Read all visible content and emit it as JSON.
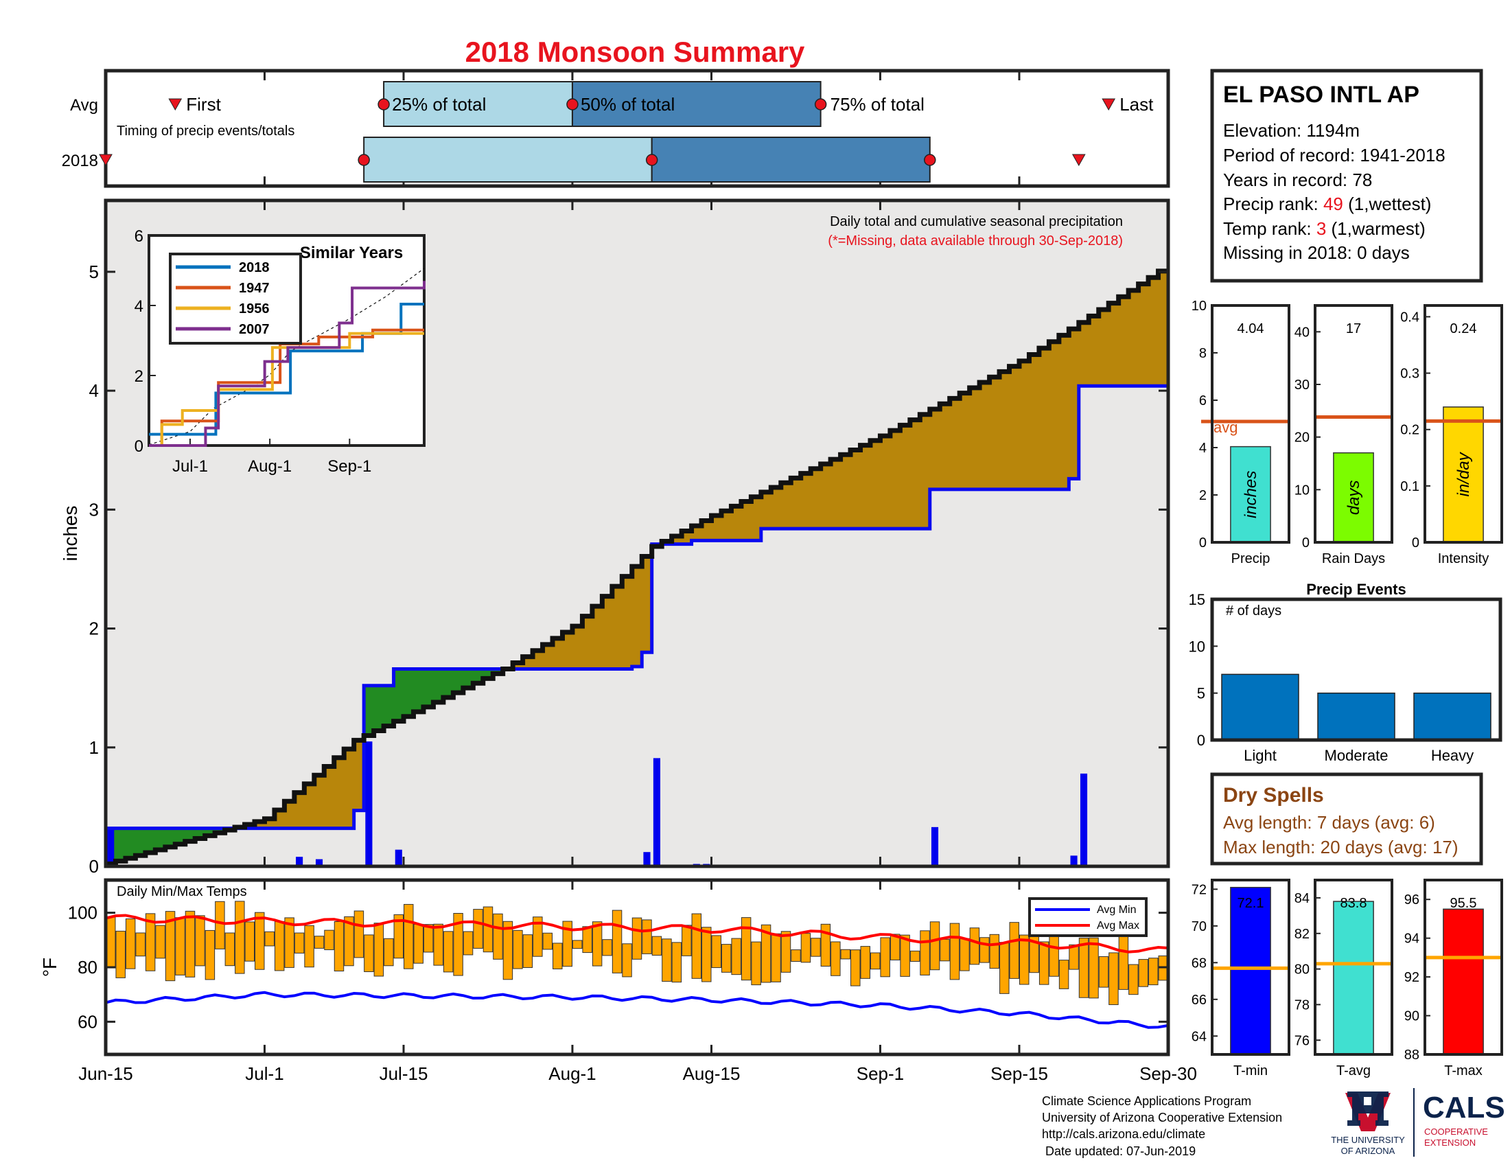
{
  "title": "2018 Monsoon Summary",
  "timing": {
    "row_labels": [
      "Avg",
      "2018"
    ],
    "note": "Timing of precip events/totals",
    "labels": {
      "first": "First",
      "p25": "25% of total",
      "p50": "50% of total",
      "p75": "75% of total",
      "last": "Last"
    },
    "avg": {
      "first": "Jun-22",
      "p25": "Jul-13",
      "p50": "Aug-1",
      "p75": "Aug-26",
      "last": "Sep-24"
    },
    "y2018": {
      "first": "Jun-15",
      "p25": "Jul-11",
      "p50": "Aug-9",
      "p75": "Sep-6",
      "last": "Sep-21"
    }
  },
  "station": {
    "name": "EL PASO INTL AP",
    "elevation": "Elevation: 1194m",
    "period": "Period of record: 1941-2018",
    "years": "Years in record: 78",
    "precip_rank_prefix": "Precip rank: ",
    "precip_rank_value": "49",
    "precip_rank_suffix": " (1,wettest)",
    "temp_rank_prefix": "Temp rank: ",
    "temp_rank_value": "3",
    "temp_rank_suffix": " (1,warmest)",
    "missing": "Missing in 2018: 0 days"
  },
  "main_chart": {
    "ylabel": "inches",
    "note_line1": "Daily total and cumulative seasonal precipitation",
    "note_line2": "(*=Missing, data available through 30-Sep-2018)",
    "x_ticks": [
      "Jun-15",
      "Jul-1",
      "Jul-15",
      "Aug-1",
      "Aug-15",
      "Sep-1",
      "Sep-15",
      "Sep-30"
    ],
    "y_ticks": [
      "0",
      "1",
      "2",
      "3",
      "4",
      "5"
    ]
  },
  "inset": {
    "title": "Similar Years",
    "legend": [
      "2018",
      "1947",
      "1956",
      "2007"
    ],
    "colors": [
      "#0072bd",
      "#d95319",
      "#edb120",
      "#7e2f8e"
    ],
    "x_ticks": [
      "Jul-1",
      "Aug-1",
      "Sep-1"
    ],
    "y_ticks": [
      "0",
      "2",
      "4",
      "6"
    ]
  },
  "stats": {
    "precip": {
      "label": "Precip",
      "value_text": "4.04",
      "unit": "inches",
      "value": 4.04,
      "avg": 5.1,
      "ylim": [
        0,
        10
      ],
      "ticks": [
        "0",
        "2",
        "4",
        "6",
        "8",
        "10"
      ],
      "avg_label": "avg",
      "color": "#40e0d0"
    },
    "rain_days": {
      "label": "Rain Days",
      "value_text": "17",
      "unit": "days",
      "value": 17,
      "avg": 23.8,
      "ylim": [
        0,
        45
      ],
      "ticks": [
        "0",
        "10",
        "20",
        "30",
        "40"
      ],
      "color": "#7cfc00"
    },
    "intensity": {
      "label": "Intensity",
      "value_text": "0.24",
      "unit": "in/day",
      "value": 0.24,
      "avg": 0.215,
      "ylim": [
        0,
        0.42
      ],
      "ticks": [
        "0",
        "0.1",
        "0.2",
        "0.3",
        "0.4"
      ],
      "color": "#ffd700"
    }
  },
  "precip_events": {
    "title": "Precip Events",
    "ylabel_note": "# of days",
    "categories": [
      "Light",
      "Moderate",
      "Heavy"
    ],
    "values": [
      7,
      5,
      5
    ],
    "y_ticks": [
      "0",
      "5",
      "10",
      "15"
    ],
    "color": "#0072bd"
  },
  "dry_spells": {
    "title": "Dry Spells",
    "avg_line": "Avg length: 7 days (avg: 6)",
    "max_line": "Max length: 20 days (avg: 17)"
  },
  "temps": {
    "label": "Daily Min/Max Temps",
    "ylabel": "°F",
    "y_ticks": [
      "60",
      "80",
      "100"
    ],
    "legend": [
      "Avg Min",
      "Avg Max"
    ]
  },
  "temp_stats": {
    "tmin": {
      "label": "T-min",
      "value_text": "72.1",
      "value": 72.1,
      "avg": 67.7,
      "ylim": [
        63,
        72.5
      ],
      "ticks": [
        "64",
        "66",
        "68",
        "70",
        "72"
      ],
      "color": "#0000ff"
    },
    "tavg": {
      "label": "T-avg",
      "value_text": "83.8",
      "value": 83.8,
      "avg": 80.3,
      "ylim": [
        75.2,
        85
      ],
      "ticks": [
        "76",
        "78",
        "80",
        "82",
        "84"
      ],
      "color": "#40e0d0"
    },
    "tmax": {
      "label": "T-max",
      "value_text": "95.5",
      "value": 95.5,
      "avg": 93,
      "ylim": [
        88,
        97
      ],
      "ticks": [
        "88",
        "90",
        "92",
        "94",
        "96"
      ],
      "color": "#ff0000"
    }
  },
  "footer": {
    "line1": "Climate Science Applications Program",
    "line2": "University of Arizona Cooperative Extension",
    "line3": "http://cals.arizona.edu/climate",
    "line4": " Date updated: 07-Jun-2019"
  },
  "logos": {
    "ua_line1": "THE UNIVERSITY",
    "ua_line2": "OF ARIZONA",
    "cals": "CALS",
    "cals_sub1": "COOPERATIVE",
    "cals_sub2": "EXTENSION"
  },
  "chart_data": [
    {
      "type": "area",
      "title": "",
      "x_axis": "date (Jun-15 to Sep-30, 2018)",
      "ylabel": "inches",
      "ylim": [
        0,
        5.6
      ],
      "series": [
        {
          "name": "",
          "points": [
            [
              "Jun-15",
              0.32
            ],
            [
              "Jul-10",
              0.47
            ],
            [
              "Jul-11",
              1.52
            ],
            [
              "Jul-14",
              1.66
            ],
            [
              "Jul-25",
              1.66
            ],
            [
              "Aug-7",
              1.68
            ],
            [
              "Aug-8",
              1.8
            ],
            [
              "Aug-9",
              2.71
            ],
            [
              "Aug-13",
              2.74
            ],
            [
              "Aug-20",
              2.84
            ],
            [
              "Sep-6",
              2.84
            ],
            [
              "Sep-6",
              3.17
            ],
            [
              "Sep-20",
              3.17
            ],
            [
              "Sep-20",
              3.26
            ],
            [
              "Sep-21",
              4.04
            ],
            [
              "Sep-30",
              4.04
            ]
          ]
        },
        {
          "name": "",
          "points": [
            [
              "Jun-15",
              0.02
            ],
            [
              "Jul-1",
              0.4
            ],
            [
              "Jul-10",
              1.06
            ],
            [
              "Jul-25",
              1.66
            ],
            [
              "Aug-1",
              2.02
            ],
            [
              "Aug-9",
              2.69
            ],
            [
              "Aug-15",
              2.95
            ],
            [
              "Sep-1",
              3.62
            ],
            [
              "Sep-15",
              4.25
            ],
            [
              "Sep-30",
              5.06
            ]
          ]
        }
      ],
      "daily_bars": [
        [
          "Jun-15",
          0.32
        ],
        [
          "Jul-4",
          0.08
        ],
        [
          "Jul-6",
          0.06
        ],
        [
          "Jul-11",
          1.05
        ],
        [
          "Jul-14",
          0.14
        ],
        [
          "Aug-8",
          0.12
        ],
        [
          "Aug-9",
          0.91
        ],
        [
          "Aug-13",
          0.02
        ],
        [
          "Aug-14",
          0.02
        ],
        [
          "Aug-20",
          0.01
        ],
        [
          "Aug-22",
          0.01
        ],
        [
          "Sep-6",
          0.33
        ],
        [
          "Sep-20",
          0.09
        ],
        [
          "Sep-21",
          0.78
        ]
      ]
    },
    {
      "type": "line",
      "title": "Similar Years",
      "xlabel": "",
      "ylabel": "",
      "ylim": [
        0,
        6
      ],
      "series": [
        {
          "name": "2018",
          "points": [
            [
              "Jun-15",
              0.32
            ],
            [
              "Jul-11",
              1.5
            ],
            [
              "Aug-9",
              2.7
            ],
            [
              "Sep-6",
              3.2
            ],
            [
              "Sep-21",
              4.04
            ],
            [
              "Sep-30",
              4.04
            ]
          ]
        },
        {
          "name": "1947",
          "points": [
            [
              "Jun-15",
              0.0
            ],
            [
              "Jun-20",
              0.7
            ],
            [
              "Jul-12",
              1.8
            ],
            [
              "Aug-5",
              2.9
            ],
            [
              "Aug-20",
              3.1
            ],
            [
              "Sep-10",
              3.3
            ],
            [
              "Sep-30",
              3.3
            ]
          ]
        },
        {
          "name": "1956",
          "points": [
            [
              "Jun-15",
              0.0
            ],
            [
              "Jun-20",
              0.6
            ],
            [
              "Jun-28",
              1.0
            ],
            [
              "Jul-12",
              1.6
            ],
            [
              "Aug-2",
              2.8
            ],
            [
              "Sep-1",
              3.2
            ],
            [
              "Sep-30",
              3.2
            ]
          ]
        },
        {
          "name": "2007",
          "points": [
            [
              "Jun-15",
              0.0
            ],
            [
              "Jul-7",
              0.5
            ],
            [
              "Jul-12",
              1.7
            ],
            [
              "Jul-30",
              2.4
            ],
            [
              "Aug-8",
              2.8
            ],
            [
              "Aug-28",
              3.5
            ],
            [
              "Sep-2",
              4.5
            ],
            [
              "Sep-30",
              4.7
            ]
          ]
        }
      ]
    },
    {
      "type": "bar",
      "title": "Daily Min/Max Temps",
      "ylabel": "°F",
      "ylim": [
        48,
        112
      ],
      "x_axis": "date (Jun-15 to Sep-30, 2018)",
      "avg_max": [
        [
          "Jun-15",
          98
        ],
        [
          "Jul-15",
          96
        ],
        [
          "Aug-15",
          94
        ],
        [
          "Sep-1",
          91
        ],
        [
          "Sep-15",
          89
        ],
        [
          "Sep-30",
          86
        ]
      ],
      "avg_min": [
        [
          "Jun-15",
          67
        ],
        [
          "Jul-1",
          70
        ],
        [
          "Aug-1",
          69
        ],
        [
          "Aug-15",
          68
        ],
        [
          "Sep-1",
          66
        ],
        [
          "Sep-15",
          63
        ],
        [
          "Sep-30",
          58
        ]
      ]
    },
    {
      "type": "bar",
      "title": "Precip Events",
      "categories": [
        "Light",
        "Moderate",
        "Heavy"
      ],
      "values": [
        7,
        5,
        5
      ],
      "ylim": [
        0,
        15
      ]
    }
  ]
}
